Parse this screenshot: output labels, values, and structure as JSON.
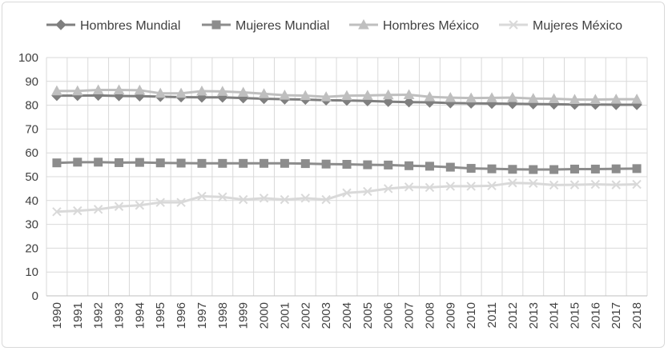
{
  "chart_data": {
    "type": "line",
    "title": "",
    "xlabel": "",
    "ylabel": "",
    "ylim": [
      0,
      100
    ],
    "yticks": [
      0,
      10,
      20,
      30,
      40,
      50,
      60,
      70,
      80,
      90,
      100
    ],
    "grid": "horizontal",
    "legend_position": "top",
    "x": [
      "1990",
      "1991",
      "1992",
      "1993",
      "1994",
      "1995",
      "1996",
      "1997",
      "1998",
      "1999",
      "2000",
      "2001",
      "2002",
      "2003",
      "2004",
      "2005",
      "2006",
      "2007",
      "2008",
      "2009",
      "2010",
      "2011",
      "2012",
      "2013",
      "2014",
      "2015",
      "2016",
      "2017",
      "2018"
    ],
    "series": [
      {
        "name": "Hombres Mundial",
        "color": "#7f7f7f",
        "marker": "diamond",
        "values": [
          84.0,
          84.0,
          84.1,
          83.9,
          83.8,
          83.6,
          83.4,
          83.3,
          83.3,
          83.0,
          82.7,
          82.5,
          82.4,
          82.1,
          82.0,
          81.8,
          81.5,
          81.3,
          81.2,
          80.9,
          80.8,
          80.7,
          80.6,
          80.5,
          80.4,
          80.3,
          80.3,
          80.2,
          80.2
        ]
      },
      {
        "name": "Mujeres Mundial",
        "color": "#8c8c8c",
        "marker": "square",
        "values": [
          55.8,
          56.1,
          56.1,
          55.9,
          56.0,
          55.8,
          55.7,
          55.6,
          55.6,
          55.6,
          55.6,
          55.6,
          55.5,
          55.3,
          55.2,
          55.0,
          54.9,
          54.6,
          54.4,
          54.0,
          53.5,
          53.3,
          53.1,
          53.0,
          53.0,
          53.2,
          53.2,
          53.3,
          53.4
        ]
      },
      {
        "name": "Hombres México",
        "color": "#bfbfbf",
        "marker": "triangle",
        "values": [
          86.0,
          86.0,
          86.4,
          86.4,
          86.3,
          85.0,
          85.0,
          85.9,
          85.8,
          85.4,
          84.8,
          84.2,
          84.0,
          83.5,
          84.0,
          84.1,
          84.3,
          84.4,
          83.5,
          83.2,
          83.0,
          83.1,
          83.2,
          82.8,
          82.7,
          82.4,
          82.4,
          82.5,
          82.5
        ]
      },
      {
        "name": "Mujeres México",
        "color": "#d9d9d9",
        "marker": "x",
        "values": [
          35.3,
          35.7,
          36.3,
          37.5,
          38.0,
          39.2,
          39.2,
          41.8,
          41.5,
          40.4,
          41.0,
          40.4,
          41.0,
          40.4,
          43.2,
          43.8,
          45.0,
          45.7,
          45.5,
          46.0,
          46.0,
          46.2,
          47.4,
          47.2,
          46.5,
          46.6,
          46.8,
          46.6,
          46.8
        ]
      }
    ]
  }
}
